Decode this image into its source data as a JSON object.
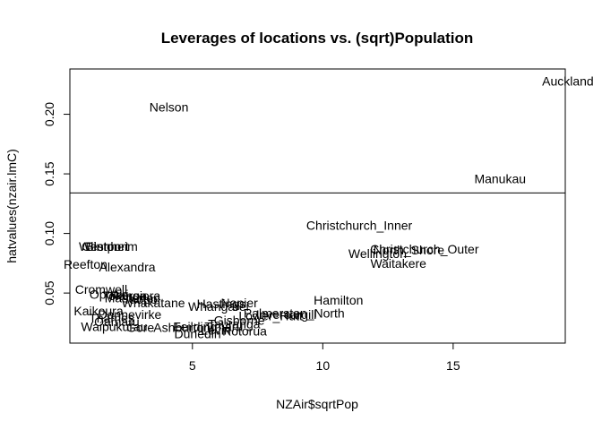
{
  "chart_data": {
    "type": "scatter",
    "title": "Leverages of locations vs. (sqrt)Population",
    "xlabel": "NZAir$sqrtPop",
    "ylabel": "hatvalues(nzair.lmC)",
    "xlim": [
      0.3,
      19.3
    ],
    "ylim": [
      0.008,
      0.238
    ],
    "xticks": [
      5,
      10,
      15
    ],
    "yticks": [
      0.05,
      0.1,
      0.15,
      0.2
    ],
    "ytick_labels": [
      "0.05",
      "0.10",
      "0.15",
      "0.20"
    ],
    "hline": 0.134,
    "grid": false,
    "points": [
      {
        "label": "Auckland",
        "x": 19.4,
        "y": 0.228
      },
      {
        "label": "Nelson",
        "x": 4.1,
        "y": 0.206
      },
      {
        "label": "Manukau",
        "x": 16.8,
        "y": 0.146
      },
      {
        "label": "Christchurch_Inner",
        "x": 11.4,
        "y": 0.107
      },
      {
        "label": "Christchurch_Outer",
        "x": 13.9,
        "y": 0.087
      },
      {
        "label": "North_Shore",
        "x": 13.3,
        "y": 0.086
      },
      {
        "label": "Wellington",
        "x": 12.1,
        "y": 0.083
      },
      {
        "label": "Waitakere",
        "x": 12.9,
        "y": 0.075
      },
      {
        "label": "Clinton",
        "x": 1.5,
        "y": 0.089
      },
      {
        "label": "Westport",
        "x": 1.6,
        "y": 0.089
      },
      {
        "label": "Blenheim",
        "x": 1.9,
        "y": 0.089
      },
      {
        "label": "Reefton",
        "x": 0.9,
        "y": 0.074
      },
      {
        "label": "Alexandra",
        "x": 2.5,
        "y": 0.072
      },
      {
        "label": "Cromwell",
        "x": 1.5,
        "y": 0.053
      },
      {
        "label": "Opotiki",
        "x": 1.8,
        "y": 0.049
      },
      {
        "label": "Tokoroa",
        "x": 2.4,
        "y": 0.048
      },
      {
        "label": "Rangiora",
        "x": 2.8,
        "y": 0.048
      },
      {
        "label": "Masterton",
        "x": 2.7,
        "y": 0.046
      },
      {
        "label": "Taupo",
        "x": 3.0,
        "y": 0.045
      },
      {
        "label": "Whakatane",
        "x": 3.5,
        "y": 0.042
      },
      {
        "label": "Hastings",
        "x": 6.1,
        "y": 0.041
      },
      {
        "label": "Napier",
        "x": 6.8,
        "y": 0.042
      },
      {
        "label": "Whangarei",
        "x": 6.0,
        "y": 0.039
      },
      {
        "label": "Hamilton",
        "x": 10.6,
        "y": 0.044
      },
      {
        "label": "Palmerston_North",
        "x": 8.9,
        "y": 0.033
      },
      {
        "label": "Invercargill",
        "x": 8.6,
        "y": 0.032
      },
      {
        "label": "Lower_Hutt",
        "x": 8.0,
        "y": 0.031
      },
      {
        "label": "Kaikoura",
        "x": 1.4,
        "y": 0.035
      },
      {
        "label": "Dannevirke",
        "x": 2.6,
        "y": 0.032
      },
      {
        "label": "Thames",
        "x": 1.9,
        "y": 0.029
      },
      {
        "label": "Oamaru",
        "x": 2.1,
        "y": 0.026
      },
      {
        "label": "Waipukurau",
        "x": 2.0,
        "y": 0.022
      },
      {
        "label": "Gore",
        "x": 3.0,
        "y": 0.021
      },
      {
        "label": "Ashburton",
        "x": 4.6,
        "y": 0.021
      },
      {
        "label": "Feilding",
        "x": 5.1,
        "y": 0.022
      },
      {
        "label": "Levin",
        "x": 5.9,
        "y": 0.019
      },
      {
        "label": "Timaru",
        "x": 6.2,
        "y": 0.022
      },
      {
        "label": "Tauranga",
        "x": 6.6,
        "y": 0.024
      },
      {
        "label": "Gisborne",
        "x": 6.8,
        "y": 0.027
      },
      {
        "label": "Dunedin",
        "x": 5.2,
        "y": 0.016
      },
      {
        "label": "Rotorua",
        "x": 7.0,
        "y": 0.018
      }
    ]
  }
}
